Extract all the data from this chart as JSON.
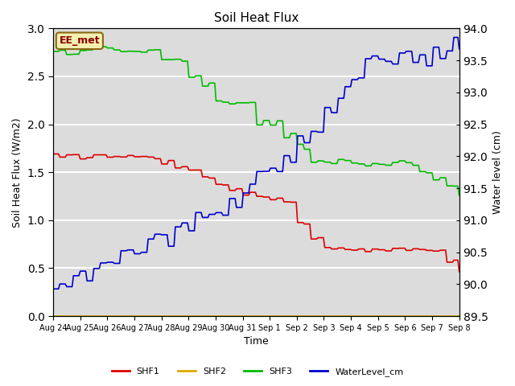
{
  "title": "Soil Heat Flux",
  "ylabel_left": "Soil Heat Flux (W/m2)",
  "ylabel_right": "Water level (cm)",
  "xlabel": "Time",
  "annotation": "EE_met",
  "ylim_left": [
    0.0,
    3.0
  ],
  "ylim_right": [
    89.5,
    94.0
  ],
  "background_color": "#dcdcdc",
  "line_colors": {
    "SHF1": "#dd0000",
    "SHF2": "#ddaa00",
    "SHF3": "#00bb00",
    "WaterLevel_cm": "#0000cc"
  },
  "x_tick_labels": [
    "Aug 24",
    "Aug 25",
    "Aug 26",
    "Aug 27",
    "Aug 28",
    "Aug 29",
    "Aug 30",
    "Aug 31",
    "Sep 1",
    "Sep 2",
    "Sep 3",
    "Sep 4",
    "Sep 5",
    "Sep 6",
    "Sep 7",
    "Sep 8"
  ],
  "yticks_left": [
    0.0,
    0.5,
    1.0,
    1.5,
    2.0,
    2.5,
    3.0
  ],
  "yticks_right": [
    89.5,
    90.0,
    90.5,
    91.0,
    91.5,
    92.0,
    92.5,
    93.0,
    93.5,
    94.0
  ]
}
